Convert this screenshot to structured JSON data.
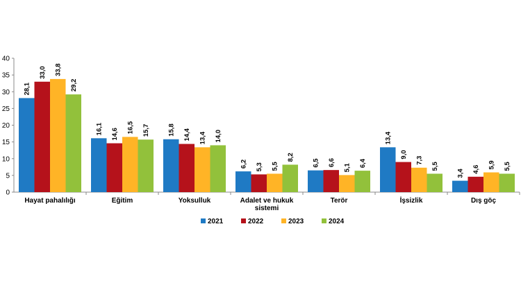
{
  "chart_data": {
    "type": "bar",
    "categories": [
      "Hayat pahalılığı",
      "Eğitim",
      "Yoksulluk",
      "Adalet ve hukuk sistemi",
      "Terör",
      "İşsizlik",
      "Dış göç"
    ],
    "category_lines": [
      [
        "Hayat pahalılığı"
      ],
      [
        "Eğitim"
      ],
      [
        "Yoksulluk"
      ],
      [
        "Adalet ve hukuk",
        "sistemi"
      ],
      [
        "Terör"
      ],
      [
        "İşsizlik"
      ],
      [
        "Dış göç"
      ]
    ],
    "series": [
      {
        "name": "2021",
        "color": "#1F7AC4",
        "values": [
          28.1,
          16.1,
          15.8,
          6.2,
          6.5,
          13.4,
          3.4
        ],
        "labels": [
          "28,1",
          "16,1",
          "15,8",
          "6,2",
          "6,5",
          "13,4",
          "3,4"
        ]
      },
      {
        "name": "2022",
        "color": "#B5121B",
        "values": [
          33.0,
          14.6,
          14.4,
          5.3,
          6.6,
          9.0,
          4.6
        ],
        "labels": [
          "33,0",
          "14,6",
          "14,4",
          "5,3",
          "6,6",
          "9,0",
          "4,6"
        ]
      },
      {
        "name": "2023",
        "color": "#FFB426",
        "values": [
          33.8,
          16.5,
          13.4,
          5.5,
          5.1,
          7.3,
          5.9
        ],
        "labels": [
          "33,8",
          "16,5",
          "13,4",
          "5,5",
          "5,1",
          "7,3",
          "5,9"
        ]
      },
      {
        "name": "2024",
        "color": "#92C13B",
        "values": [
          29.2,
          15.7,
          14.0,
          8.2,
          6.4,
          5.5,
          5.5
        ],
        "labels": [
          "29,2",
          "15,7",
          "14,0",
          "8,2",
          "6,4",
          "5,5",
          "5,5"
        ]
      }
    ],
    "yticks": [
      0,
      5,
      10,
      15,
      20,
      25,
      30,
      35,
      40
    ],
    "ylim": [
      0,
      40
    ],
    "grid": false,
    "legend_position": "bottom",
    "title": "",
    "xlabel": "",
    "ylabel": ""
  }
}
